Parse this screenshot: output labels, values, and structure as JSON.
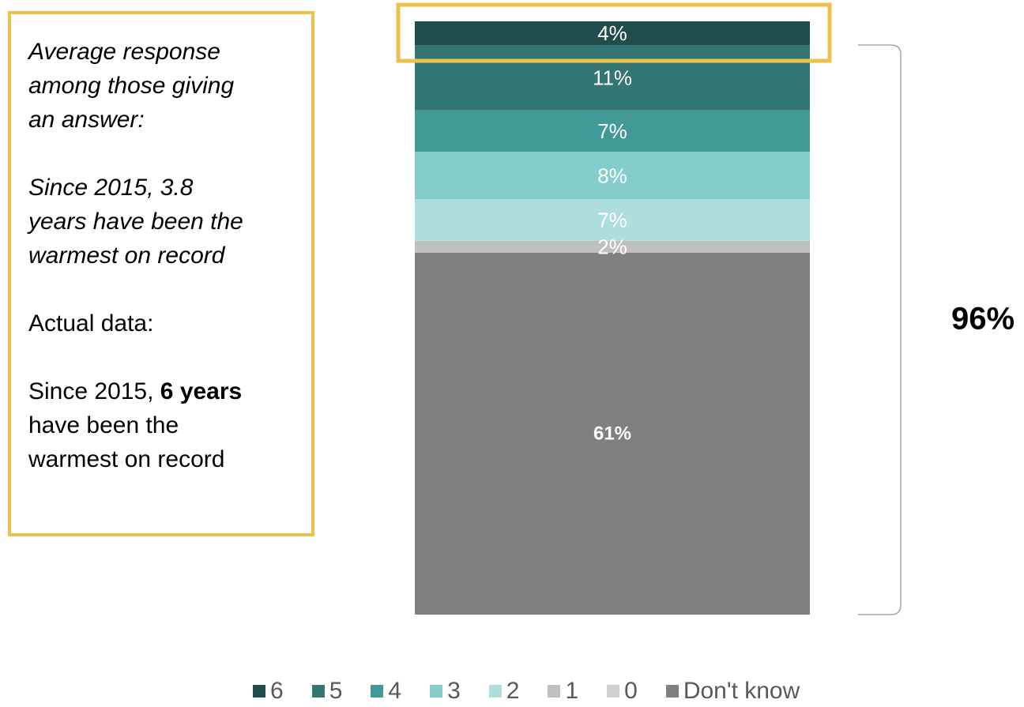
{
  "note": {
    "line1": "Average response",
    "line2": "among those giving",
    "line3": "an answer:",
    "line4": "Since 2015, 3.8",
    "line5": "years have been the",
    "line6": "warmest on record",
    "line7": "Actual data:",
    "line8_prefix": "Since 2015, ",
    "line8_bold": "6 years",
    "line9": "have been the",
    "line10": "warmest on record"
  },
  "bracket_label": "96%",
  "highlight_color": "#ECC04B",
  "chart_data": {
    "type": "bar",
    "orientation": "stacked-vertical",
    "categories": [
      ""
    ],
    "series": [
      {
        "name": "6",
        "values": [
          4
        ],
        "color": "#1F4E4D",
        "label": "4%"
      },
      {
        "name": "5",
        "values": [
          11
        ],
        "color": "#337572",
        "label": "11%"
      },
      {
        "name": "4",
        "values": [
          7
        ],
        "color": "#429A98",
        "label": "7%"
      },
      {
        "name": "3",
        "values": [
          8
        ],
        "color": "#84CDCB",
        "label": "8%"
      },
      {
        "name": "2",
        "values": [
          7
        ],
        "color": "#ADDDDD",
        "label": "7%"
      },
      {
        "name": "1",
        "values": [
          2
        ],
        "color": "#BFBFBF",
        "label": "2%"
      },
      {
        "name": "0",
        "values": [
          0
        ],
        "color": "#D0D0D0",
        "label": ""
      },
      {
        "name": "Don't know",
        "values": [
          61
        ],
        "color": "#808080",
        "label": "61%"
      }
    ],
    "stack_order": "Don't know at bottom, 6 at top",
    "legend_position": "bottom",
    "highlighted_segment": "6",
    "bracket_covers": [
      "5",
      "4",
      "3",
      "2",
      "1",
      "0",
      "Don't know"
    ]
  }
}
